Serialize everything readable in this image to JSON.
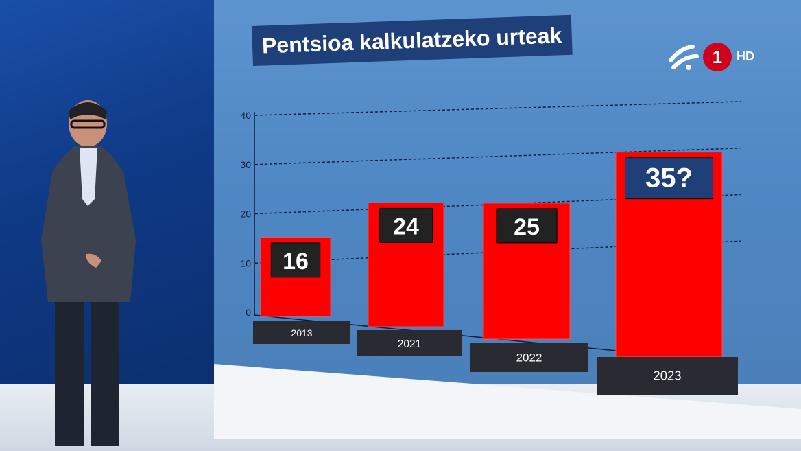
{
  "title": "Pentsioa kalkulatzeko urteak",
  "channel": {
    "number": "1",
    "quality": "HD",
    "logo_icon": "eitb-logo-icon"
  },
  "colors": {
    "bar": "#ff0000",
    "label_box": "#222222",
    "highlight_box": "#1f3f78",
    "year_box": "#2a2a33"
  },
  "chart_data": {
    "type": "bar",
    "categories": [
      "2013",
      "2021",
      "2022",
      "2023"
    ],
    "values": [
      16,
      24,
      25,
      35
    ],
    "data_labels": [
      "16",
      "24",
      "25",
      "35?"
    ],
    "yticks": [
      "0",
      "10",
      "20",
      "30",
      "40"
    ],
    "ylim": [
      0,
      40
    ],
    "grid": true,
    "title": "Pentsioa kalkulatzeko urteak"
  }
}
